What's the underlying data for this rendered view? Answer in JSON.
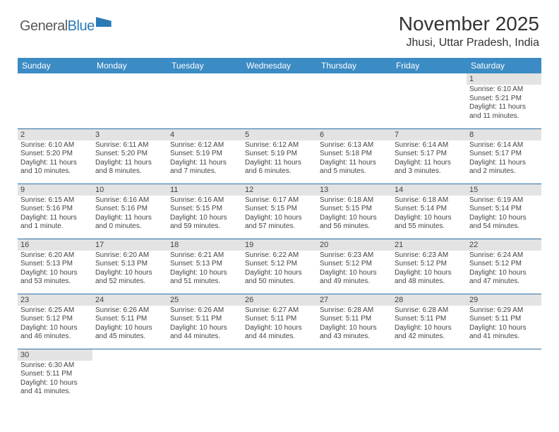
{
  "logo": {
    "text_general": "General",
    "text_blue": "Blue"
  },
  "title": "November 2025",
  "location": "Jhusi, Uttar Pradesh, India",
  "colors": {
    "header_bg": "#3b8bc4",
    "header_text": "#ffffff",
    "daynum_bg": "#e3e3e3",
    "row_border": "#2a6fa8",
    "logo_blue": "#2a7ab8",
    "text": "#333333"
  },
  "day_headers": [
    "Sunday",
    "Monday",
    "Tuesday",
    "Wednesday",
    "Thursday",
    "Friday",
    "Saturday"
  ],
  "weeks": [
    [
      null,
      null,
      null,
      null,
      null,
      null,
      {
        "n": "1",
        "sr": "Sunrise: 6:10 AM",
        "ss": "Sunset: 5:21 PM",
        "dl": "Daylight: 11 hours and 11 minutes."
      }
    ],
    [
      {
        "n": "2",
        "sr": "Sunrise: 6:10 AM",
        "ss": "Sunset: 5:20 PM",
        "dl": "Daylight: 11 hours and 10 minutes."
      },
      {
        "n": "3",
        "sr": "Sunrise: 6:11 AM",
        "ss": "Sunset: 5:20 PM",
        "dl": "Daylight: 11 hours and 8 minutes."
      },
      {
        "n": "4",
        "sr": "Sunrise: 6:12 AM",
        "ss": "Sunset: 5:19 PM",
        "dl": "Daylight: 11 hours and 7 minutes."
      },
      {
        "n": "5",
        "sr": "Sunrise: 6:12 AM",
        "ss": "Sunset: 5:19 PM",
        "dl": "Daylight: 11 hours and 6 minutes."
      },
      {
        "n": "6",
        "sr": "Sunrise: 6:13 AM",
        "ss": "Sunset: 5:18 PM",
        "dl": "Daylight: 11 hours and 5 minutes."
      },
      {
        "n": "7",
        "sr": "Sunrise: 6:14 AM",
        "ss": "Sunset: 5:17 PM",
        "dl": "Daylight: 11 hours and 3 minutes."
      },
      {
        "n": "8",
        "sr": "Sunrise: 6:14 AM",
        "ss": "Sunset: 5:17 PM",
        "dl": "Daylight: 11 hours and 2 minutes."
      }
    ],
    [
      {
        "n": "9",
        "sr": "Sunrise: 6:15 AM",
        "ss": "Sunset: 5:16 PM",
        "dl": "Daylight: 11 hours and 1 minute."
      },
      {
        "n": "10",
        "sr": "Sunrise: 6:16 AM",
        "ss": "Sunset: 5:16 PM",
        "dl": "Daylight: 11 hours and 0 minutes."
      },
      {
        "n": "11",
        "sr": "Sunrise: 6:16 AM",
        "ss": "Sunset: 5:15 PM",
        "dl": "Daylight: 10 hours and 59 minutes."
      },
      {
        "n": "12",
        "sr": "Sunrise: 6:17 AM",
        "ss": "Sunset: 5:15 PM",
        "dl": "Daylight: 10 hours and 57 minutes."
      },
      {
        "n": "13",
        "sr": "Sunrise: 6:18 AM",
        "ss": "Sunset: 5:15 PM",
        "dl": "Daylight: 10 hours and 56 minutes."
      },
      {
        "n": "14",
        "sr": "Sunrise: 6:18 AM",
        "ss": "Sunset: 5:14 PM",
        "dl": "Daylight: 10 hours and 55 minutes."
      },
      {
        "n": "15",
        "sr": "Sunrise: 6:19 AM",
        "ss": "Sunset: 5:14 PM",
        "dl": "Daylight: 10 hours and 54 minutes."
      }
    ],
    [
      {
        "n": "16",
        "sr": "Sunrise: 6:20 AM",
        "ss": "Sunset: 5:13 PM",
        "dl": "Daylight: 10 hours and 53 minutes."
      },
      {
        "n": "17",
        "sr": "Sunrise: 6:20 AM",
        "ss": "Sunset: 5:13 PM",
        "dl": "Daylight: 10 hours and 52 minutes."
      },
      {
        "n": "18",
        "sr": "Sunrise: 6:21 AM",
        "ss": "Sunset: 5:13 PM",
        "dl": "Daylight: 10 hours and 51 minutes."
      },
      {
        "n": "19",
        "sr": "Sunrise: 6:22 AM",
        "ss": "Sunset: 5:12 PM",
        "dl": "Daylight: 10 hours and 50 minutes."
      },
      {
        "n": "20",
        "sr": "Sunrise: 6:23 AM",
        "ss": "Sunset: 5:12 PM",
        "dl": "Daylight: 10 hours and 49 minutes."
      },
      {
        "n": "21",
        "sr": "Sunrise: 6:23 AM",
        "ss": "Sunset: 5:12 PM",
        "dl": "Daylight: 10 hours and 48 minutes."
      },
      {
        "n": "22",
        "sr": "Sunrise: 6:24 AM",
        "ss": "Sunset: 5:12 PM",
        "dl": "Daylight: 10 hours and 47 minutes."
      }
    ],
    [
      {
        "n": "23",
        "sr": "Sunrise: 6:25 AM",
        "ss": "Sunset: 5:12 PM",
        "dl": "Daylight: 10 hours and 46 minutes."
      },
      {
        "n": "24",
        "sr": "Sunrise: 6:26 AM",
        "ss": "Sunset: 5:11 PM",
        "dl": "Daylight: 10 hours and 45 minutes."
      },
      {
        "n": "25",
        "sr": "Sunrise: 6:26 AM",
        "ss": "Sunset: 5:11 PM",
        "dl": "Daylight: 10 hours and 44 minutes."
      },
      {
        "n": "26",
        "sr": "Sunrise: 6:27 AM",
        "ss": "Sunset: 5:11 PM",
        "dl": "Daylight: 10 hours and 44 minutes."
      },
      {
        "n": "27",
        "sr": "Sunrise: 6:28 AM",
        "ss": "Sunset: 5:11 PM",
        "dl": "Daylight: 10 hours and 43 minutes."
      },
      {
        "n": "28",
        "sr": "Sunrise: 6:28 AM",
        "ss": "Sunset: 5:11 PM",
        "dl": "Daylight: 10 hours and 42 minutes."
      },
      {
        "n": "29",
        "sr": "Sunrise: 6:29 AM",
        "ss": "Sunset: 5:11 PM",
        "dl": "Daylight: 10 hours and 41 minutes."
      }
    ],
    [
      {
        "n": "30",
        "sr": "Sunrise: 6:30 AM",
        "ss": "Sunset: 5:11 PM",
        "dl": "Daylight: 10 hours and 41 minutes."
      },
      null,
      null,
      null,
      null,
      null,
      null
    ]
  ]
}
